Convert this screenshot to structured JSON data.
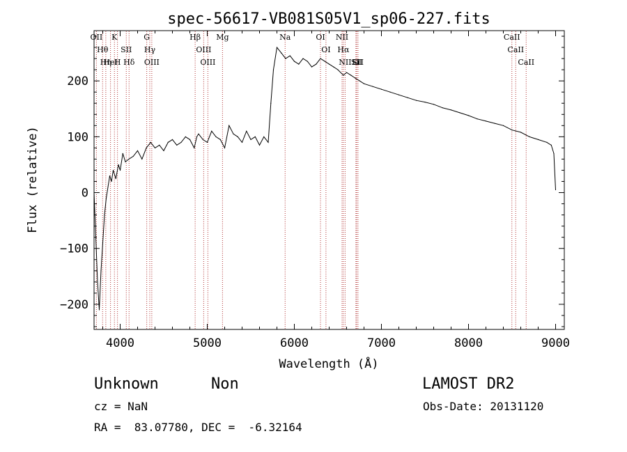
{
  "chart_data": {
    "type": "line",
    "title": "spec-56617-VB081S05V1_sp06-227.fits",
    "xlabel": "Wavelength (Å)",
    "ylabel": "Flux (relative)",
    "xlim": [
      3700,
      9100
    ],
    "ylim": [
      -245,
      290
    ],
    "xticks": [
      4000,
      5000,
      6000,
      7000,
      8000,
      9000
    ],
    "yticks": [
      -200,
      -100,
      0,
      100,
      200
    ],
    "grid": false,
    "line_color": "#000000",
    "marker_color": "#b03030",
    "series": [
      {
        "x": [
          3700,
          3720,
          3740,
          3760,
          3780,
          3800,
          3820,
          3840,
          3860,
          3880,
          3900,
          3920,
          3950,
          3980,
          4000,
          4030,
          4060,
          4100,
          4150,
          4200,
          4250,
          4300,
          4350,
          4400,
          4450,
          4500,
          4550,
          4600,
          4650,
          4700,
          4750,
          4800,
          4850,
          4880,
          4900,
          4950,
          5000,
          5050,
          5100,
          5150,
          5200,
          5250,
          5300,
          5350,
          5400,
          5450,
          5500,
          5550,
          5600,
          5650,
          5700,
          5730,
          5760,
          5800,
          5850,
          5900,
          5950,
          6000,
          6050,
          6100,
          6150,
          6200,
          6250,
          6300,
          6350,
          6400,
          6450,
          6500,
          6563,
          6600,
          6650,
          6700,
          6750,
          6800,
          6900,
          7000,
          7100,
          7200,
          7300,
          7400,
          7500,
          7600,
          7700,
          7800,
          7900,
          8000,
          8100,
          8200,
          8300,
          8400,
          8500,
          8600,
          8700,
          8800,
          8900,
          8950,
          8980,
          9000
        ],
        "y": [
          0,
          -80,
          -160,
          -210,
          -140,
          -90,
          -40,
          -10,
          10,
          30,
          20,
          40,
          25,
          50,
          40,
          70,
          55,
          60,
          65,
          75,
          60,
          80,
          90,
          80,
          85,
          75,
          90,
          95,
          85,
          90,
          100,
          95,
          80,
          100,
          105,
          95,
          90,
          110,
          100,
          95,
          80,
          120,
          105,
          100,
          90,
          110,
          95,
          100,
          85,
          100,
          90,
          160,
          220,
          260,
          250,
          240,
          245,
          235,
          230,
          240,
          235,
          225,
          230,
          240,
          235,
          230,
          225,
          220,
          210,
          215,
          210,
          205,
          200,
          195,
          190,
          185,
          180,
          175,
          170,
          165,
          162,
          158,
          152,
          148,
          143,
          138,
          132,
          128,
          124,
          120,
          112,
          108,
          100,
          95,
          90,
          85,
          70,
          5
        ]
      }
    ],
    "lines": [
      {
        "wavelength": 3727,
        "labels": [
          "OII"
        ]
      },
      {
        "wavelength": 3798,
        "labels": [
          "Hθ"
        ]
      },
      {
        "wavelength": 3835,
        "labels": [
          "Hη"
        ]
      },
      {
        "wavelength": 3889,
        "labels": [
          "HeI"
        ]
      },
      {
        "wavelength": 3934,
        "labels": [
          "K"
        ]
      },
      {
        "wavelength": 3969,
        "labels": [
          "H"
        ]
      },
      {
        "wavelength": 4070,
        "labels": [
          "SII"
        ]
      },
      {
        "wavelength": 4102,
        "labels": [
          "Hδ"
        ]
      },
      {
        "wavelength": 4305,
        "labels": [
          "G"
        ]
      },
      {
        "wavelength": 4340,
        "labels": [
          "Hγ"
        ]
      },
      {
        "wavelength": 4363,
        "labels": [
          "OIII"
        ]
      },
      {
        "wavelength": 4861,
        "labels": [
          "Hβ"
        ]
      },
      {
        "wavelength": 4959,
        "labels": [
          "OIII"
        ]
      },
      {
        "wavelength": 5007,
        "labels": [
          "OIII"
        ]
      },
      {
        "wavelength": 5175,
        "labels": [
          "Mg"
        ]
      },
      {
        "wavelength": 5894,
        "labels": [
          "Na"
        ]
      },
      {
        "wavelength": 6300,
        "labels": [
          "OI"
        ]
      },
      {
        "wavelength": 6363,
        "labels": [
          "OI"
        ]
      },
      {
        "wavelength": 6548,
        "labels": [
          "NII"
        ]
      },
      {
        "wavelength": 6563,
        "labels": [
          "Hα"
        ]
      },
      {
        "wavelength": 6583,
        "labels": [
          "NII"
        ]
      },
      {
        "wavelength": 6707,
        "labels": [
          "Li"
        ]
      },
      {
        "wavelength": 6716,
        "labels": [
          "SII"
        ]
      },
      {
        "wavelength": 6731,
        "labels": [
          "SII"
        ]
      },
      {
        "wavelength": 8498,
        "labels": [
          "CaII"
        ]
      },
      {
        "wavelength": 8542,
        "labels": [
          "CaII"
        ]
      },
      {
        "wavelength": 8662,
        "labels": [
          "CaII"
        ]
      }
    ]
  },
  "footer": {
    "object_class": "Unknown",
    "subclass": "Non",
    "survey": "LAMOST DR2",
    "cz": "cz = NaN",
    "obs_date": "Obs-Date: 20131120",
    "coords": "RA =  83.07780, DEC =  -6.32164"
  }
}
